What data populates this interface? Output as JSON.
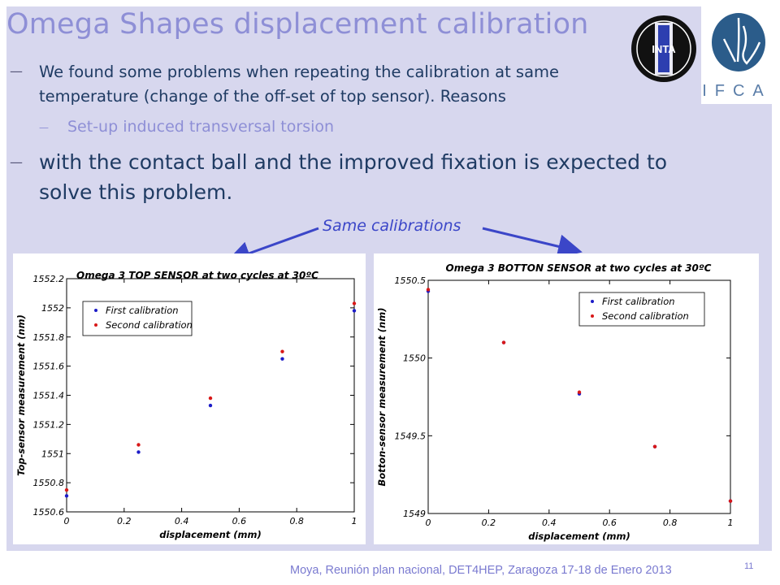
{
  "slide": {
    "title": "Omega Shapes displacement calibration",
    "bullet1": "We found some problems when repeating the calibration at same temperature (change of the off-set of top sensor). Reasons",
    "bullet1_sub": "Set-up induced transversal torsion",
    "bullet2": "with the contact ball and the improved fixation is expected to solve this problem.",
    "annotation": "Same calibrations",
    "footer": "Moya,  Reunión plan nacional, DET4HEP, Zaragoza 17-18 de Enero  2013",
    "page_number": "11",
    "logo_inta_text": "INTA",
    "logo_ifca_text": "IFCA",
    "colors": {
      "title": "#8e8fd6",
      "body": "#1f3b63",
      "annotation": "#3b46c8",
      "panel_bg": "#d7d7ee",
      "first": "#1c1cc8",
      "second": "#d81818"
    }
  },
  "chart_data": [
    {
      "type": "scatter",
      "title": "Omega 3 TOP SENSOR at two cycles at 30ºC",
      "xlabel": "displacement (mm)",
      "ylabel": "Top-sensor measurement (nm)",
      "xlim": [
        0,
        1
      ],
      "ylim": [
        1550.6,
        1552.2
      ],
      "xticks": [
        "0",
        "0.2",
        "0.4",
        "0.6",
        "0.8",
        "1"
      ],
      "yticks": [
        "1550.6",
        "1550.8",
        "1551",
        "1551.2",
        "1551.4",
        "1551.6",
        "1551.8",
        "1552",
        "1552.2"
      ],
      "legend_position": "top-left",
      "grid": false,
      "series": [
        {
          "name": "First calibration",
          "color": "#1c1cc8",
          "x": [
            0,
            0.25,
            0.5,
            0.75,
            1
          ],
          "y": [
            1550.71,
            1551.01,
            1551.33,
            1551.65,
            1551.98
          ]
        },
        {
          "name": "Second calibration",
          "color": "#d81818",
          "x": [
            0,
            0.25,
            0.5,
            0.75,
            1
          ],
          "y": [
            1550.75,
            1551.06,
            1551.38,
            1551.7,
            1552.03
          ]
        }
      ]
    },
    {
      "type": "scatter",
      "title": "Omega 3 BOTTON SENSOR at two cycles at 30ºC",
      "xlabel": "displacement (mm)",
      "ylabel": "Botton-sensor measurement (nm)",
      "xlim": [
        0,
        1
      ],
      "ylim": [
        1549,
        1550.5
      ],
      "xticks": [
        "0",
        "0.2",
        "0.4",
        "0.6",
        "0.8",
        "1"
      ],
      "yticks": [
        "1549",
        "1549.5",
        "1550",
        "1550.5"
      ],
      "legend_position": "top-right",
      "grid": false,
      "series": [
        {
          "name": "First calibration",
          "color": "#1c1cc8",
          "x": [
            0,
            0.25,
            0.5,
            0.75,
            1
          ],
          "y": [
            1550.43,
            1550.1,
            1549.77,
            1549.43,
            1549.08
          ]
        },
        {
          "name": "Second calibration",
          "color": "#d81818",
          "x": [
            0,
            0.25,
            0.5,
            0.75,
            1
          ],
          "y": [
            1550.44,
            1550.1,
            1549.78,
            1549.43,
            1549.08
          ]
        }
      ]
    }
  ]
}
